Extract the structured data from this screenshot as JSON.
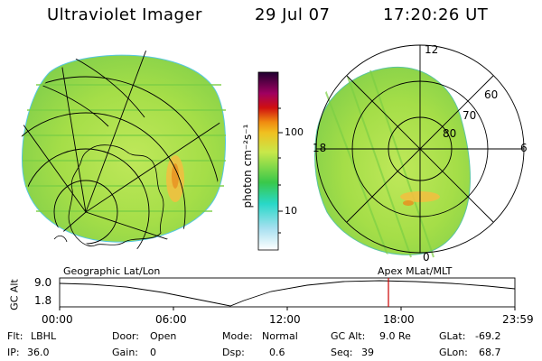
{
  "header": {
    "title": "Ultraviolet Imager",
    "date": "29 Jul 07",
    "time": "17:20:26 UT"
  },
  "colorbar": {
    "unit_label": "photon cm⁻²s⁻¹",
    "ticks": [
      "100",
      "10"
    ]
  },
  "polar_plot": {
    "lat_labels": [
      "60",
      "70",
      "80"
    ],
    "mlt_labels": [
      "12",
      "18",
      "6",
      "0"
    ]
  },
  "timeline": {
    "left_caption": "Geographic Lat/Lon",
    "right_caption": "Apex MLat/MLT",
    "yaxis_label": "GC Alt",
    "y_ticks": [
      "9.0",
      "1.8"
    ],
    "x_ticks": [
      "00:00",
      "06:00",
      "12:00",
      "18:00",
      "23:59"
    ],
    "marker_time": "17:20",
    "marker_color": "#cc0000"
  },
  "status": {
    "row1": [
      {
        "label": "Flt:",
        "value": "LBHL"
      },
      {
        "label": "Door:",
        "value": "Open"
      },
      {
        "label": "Mode:",
        "value": "Normal"
      },
      {
        "label": "GC Alt:",
        "value": "9.0 Re"
      },
      {
        "label": "GLat:",
        "value": "-69.2"
      }
    ],
    "row2": [
      {
        "label": "IP:",
        "value": "36.0"
      },
      {
        "label": "Gain:",
        "value": "0"
      },
      {
        "label": "Dsp:",
        "value": "0.6"
      },
      {
        "label": "Seq:",
        "value": "39"
      },
      {
        "label": "GLon:",
        "value": "68.7"
      }
    ]
  },
  "colors": {
    "image_fill": "#a7e04a",
    "aurora_hot": "#f1b12a",
    "marker": "#cc0000"
  }
}
